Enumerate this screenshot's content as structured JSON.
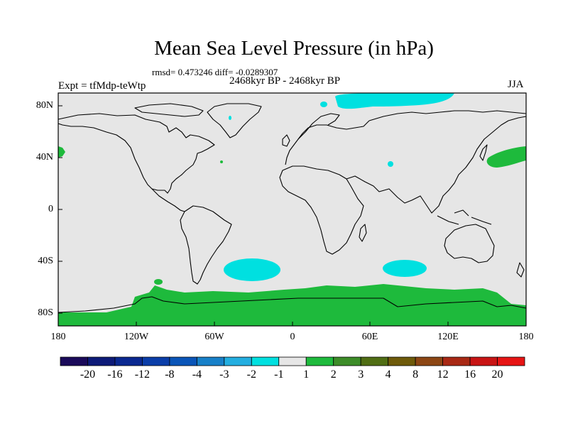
{
  "title": "Mean Sea Level Pressure (in hPa)",
  "stats_line": "rmsd= 0.473246 diff= -0.0289307",
  "period_line": "2468kyr BP - 2468kyr BP",
  "experiment_line": "Expt = tfMdp-teWtp",
  "season": "JJA",
  "y_axis_labels": [
    "80N",
    "40N",
    "0",
    "40S",
    "80S"
  ],
  "x_axis_labels": [
    "180",
    "120W",
    "60W",
    "0",
    "60E",
    "120E",
    "180"
  ],
  "colorbar": {
    "labels": [
      "-20",
      "-16",
      "-12",
      "-8",
      "-4",
      "-3",
      "-2",
      "-1",
      "1",
      "2",
      "3",
      "4",
      "8",
      "12",
      "16",
      "20"
    ],
    "colors": [
      "#1a0a5a",
      "#0d1a78",
      "#0a2890",
      "#0a3da8",
      "#0a55b8",
      "#1780c8",
      "#23aee0",
      "#00e0e0",
      "#e6e6e6",
      "#1eba3c",
      "#3c8c28",
      "#506e14",
      "#6e5a0a",
      "#8c4614",
      "#a82814",
      "#c81414",
      "#e61414"
    ]
  },
  "map": {
    "background_color": "#e6e6e6",
    "positive_color": "#1eba3c",
    "negative_color": "#00e0e0"
  }
}
